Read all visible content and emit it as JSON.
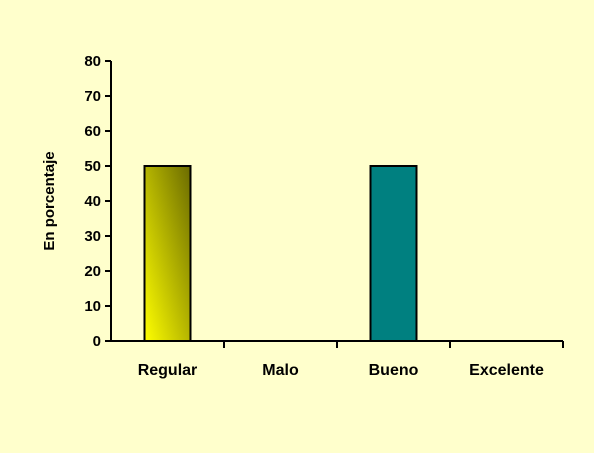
{
  "chart_data": {
    "type": "bar",
    "title": "",
    "xlabel": "",
    "ylabel": "En porcentaje",
    "categories": [
      "Regular",
      "Malo",
      "Bueno",
      "Excelente"
    ],
    "values": [
      50,
      0,
      50,
      0
    ],
    "ylim": [
      0,
      80
    ],
    "yticks": [
      0,
      10,
      20,
      30,
      40,
      50,
      60,
      70,
      80
    ],
    "grid": false,
    "legend": "none",
    "colors": {
      "background": "#FFFFCC",
      "bar_regular_light": "#FFFF00",
      "bar_regular_dark": "#6B6B00",
      "bar_bueno": "#008080"
    }
  }
}
